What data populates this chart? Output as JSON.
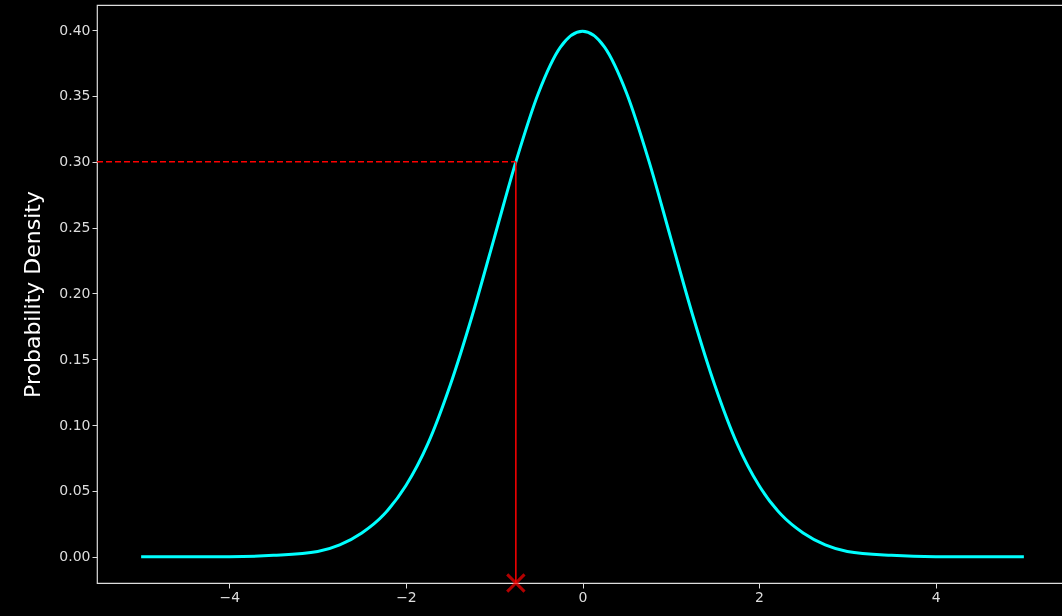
{
  "chart_data": {
    "type": "line",
    "ylabel": "Probability Density",
    "xlim": [
      -5.5,
      5.5
    ],
    "xticks": [
      {
        "value": -4,
        "label": "−4"
      },
      {
        "value": -2,
        "label": "−2"
      },
      0,
      2,
      4
    ],
    "ylim": [
      -0.02,
      0.419
    ],
    "yticks": [
      {
        "value": 0,
        "label": "0.00"
      },
      {
        "value": 0.05,
        "label": "0.05"
      },
      {
        "value": 0.1,
        "label": "0.10"
      },
      {
        "value": 0.15,
        "label": "0.15"
      },
      {
        "value": 0.2,
        "label": "0.20"
      },
      {
        "value": 0.25,
        "label": "0.25"
      },
      {
        "value": 0.3,
        "label": "0.30"
      },
      {
        "value": 0.35,
        "label": "0.35"
      },
      {
        "value": 0.4,
        "label": "0.40"
      }
    ],
    "grid": false,
    "series": [
      {
        "type": "line",
        "color": "#00ffff",
        "line_style": "solid",
        "x": [
          -5,
          -4.5,
          -4,
          -3.5,
          -3,
          -2.75,
          -2.5,
          -2.25,
          -2,
          -1.75,
          -1.5,
          -1.25,
          -1,
          -0.75,
          -0.5,
          -0.25,
          0,
          0.25,
          0.5,
          0.75,
          1,
          1.25,
          1.5,
          1.75,
          2,
          2.25,
          2.5,
          2.75,
          3,
          3.5,
          4,
          4.5,
          5
        ],
        "values": [
          0.0,
          0.0,
          0.0,
          0.001,
          0.004,
          0.009,
          0.018,
          0.032,
          0.054,
          0.086,
          0.13,
          0.183,
          0.242,
          0.301,
          0.352,
          0.387,
          0.399,
          0.387,
          0.352,
          0.301,
          0.242,
          0.183,
          0.13,
          0.086,
          0.054,
          0.032,
          0.018,
          0.009,
          0.004,
          0.001,
          0.0,
          0.0,
          0.0
        ]
      },
      {
        "type": "line",
        "color": "#ff0000",
        "line_style": "dashed",
        "x": [
          -5.5,
          -0.755
        ],
        "values": [
          0.3,
          0.3
        ]
      },
      {
        "type": "line",
        "color": "#ff0000",
        "line_style": "solid",
        "x": [
          -0.755,
          -0.755
        ],
        "values": [
          -0.02,
          0.3
        ]
      },
      {
        "type": "scatter",
        "color": "#ff0000",
        "marker": "cross",
        "x": [
          -0.755
        ],
        "values": [
          -0.02
        ]
      }
    ]
  }
}
